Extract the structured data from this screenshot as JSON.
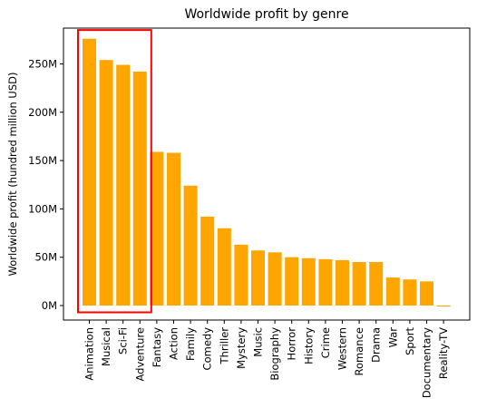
{
  "chart_data": {
    "type": "bar",
    "title": "Worldwide profit by genre",
    "xlabel": "",
    "ylabel": "Worldwide profit (hundred million USD)",
    "categories": [
      "Animation",
      "Musical",
      "Sci-Fi",
      "Adventure",
      "Fantasy",
      "Action",
      "Family",
      "Comedy",
      "Thriller",
      "Mystery",
      "Music",
      "Biography",
      "Horror",
      "History",
      "Crime",
      "Western",
      "Romance",
      "Drama",
      "War",
      "Sport",
      "Documentary",
      "Reality-TV"
    ],
    "values": [
      276,
      254,
      249,
      242,
      159,
      158,
      124,
      92,
      80,
      63,
      57,
      55,
      50,
      49,
      48,
      47,
      45,
      45,
      29,
      27,
      25,
      -1
    ],
    "value_unit": "M",
    "ylim": [
      -15,
      287
    ],
    "yticks": [
      0,
      50,
      100,
      150,
      200,
      250
    ],
    "ytick_labels": [
      "0M",
      "50M",
      "100M",
      "150M",
      "200M",
      "250M"
    ],
    "grid": false,
    "colors": {
      "bar": "#ffa500",
      "highlight": "#ff0000",
      "axis": "#000000"
    },
    "highlight": {
      "categories": [
        "Animation",
        "Musical",
        "Sci-Fi",
        "Adventure"
      ],
      "ylim": [
        -7,
        285
      ]
    }
  }
}
